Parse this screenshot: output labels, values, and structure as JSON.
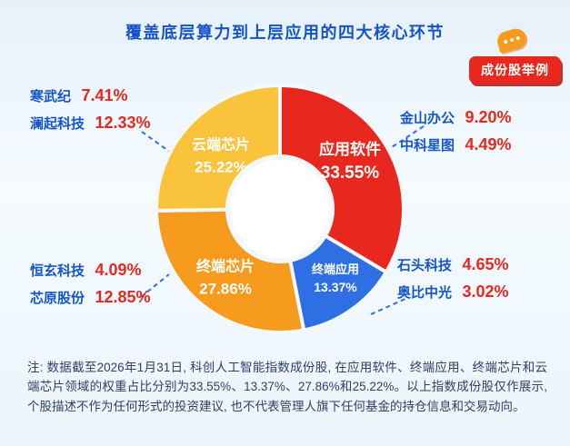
{
  "page": {
    "title": "覆盖底层算力到上层应用的四大核心环节",
    "badge": "成份股举例",
    "note": "注: 数据截至2026年1月31日, 科创人工智能指数成份股, 在应用软件、终端应用、终端芯片和云端芯片领域的权重占比分别为33.55%、13.37%、27.86%和25.22%。以上指数成份股仅作展示, 个股描述不作为任何形式的投资建议, 也不代表管理人旗下任何基金的持仓信息和交易动向。"
  },
  "colors": {
    "title_blue": "#1553c8",
    "badge_red": "#e8281e",
    "connector_blue": "#2e6fe4",
    "weight_red": "#e8281e",
    "name_blue": "#1456c8"
  },
  "chart_data": {
    "type": "pie",
    "donut": true,
    "title": "覆盖底层算力到上层应用的四大核心环节",
    "start_angle_deg": -90,
    "direction": "clockwise",
    "unit": "%",
    "segments": [
      {
        "label": "应用软件",
        "value": 33.55,
        "pct": "33.55%",
        "color": "#e8281e"
      },
      {
        "label": "终端应用",
        "value": 13.37,
        "pct": "13.37%",
        "color": "#2e6fe4"
      },
      {
        "label": "终端芯片",
        "value": 27.86,
        "pct": "27.86%",
        "color": "#f79b1e"
      },
      {
        "label": "云端芯片",
        "value": 25.22,
        "pct": "25.22%",
        "color": "#fac33c"
      }
    ],
    "annotations": {
      "top_left": [
        {
          "name": "寒武纪",
          "weight": "7.41%"
        },
        {
          "name": "澜起科技",
          "weight": "12.33%"
        }
      ],
      "top_right": [
        {
          "name": "金山办公",
          "weight": "9.20%"
        },
        {
          "name": "中科星图",
          "weight": "4.49%"
        }
      ],
      "bottom_left": [
        {
          "name": "恒玄科技",
          "weight": "4.09%"
        },
        {
          "name": "芯原股份",
          "weight": "12.85%"
        }
      ],
      "bottom_right": [
        {
          "name": "石头科技",
          "weight": "4.65%"
        },
        {
          "name": "奥比中光",
          "weight": "3.02%"
        }
      ]
    }
  }
}
